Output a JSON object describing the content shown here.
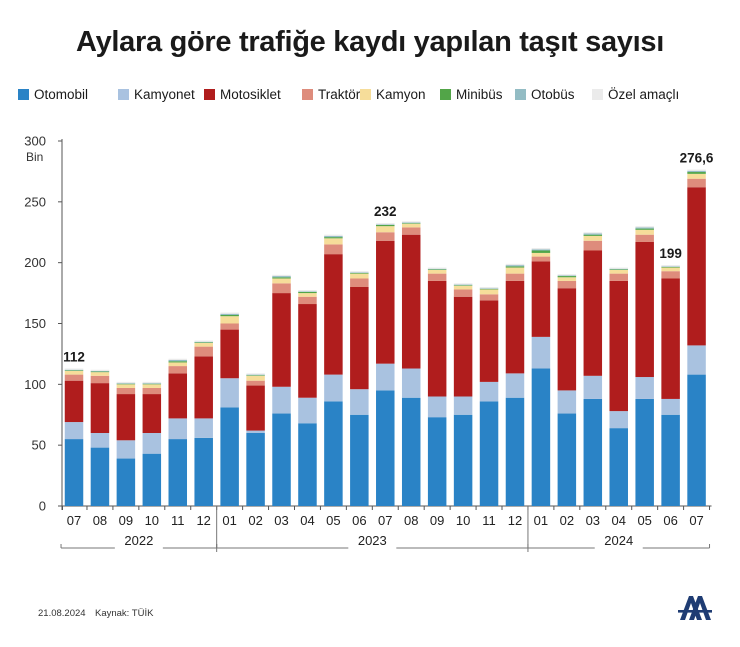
{
  "title": "Aylara göre trafiğe kaydı yapılan taşıt sayısı",
  "footer": {
    "date": "21.08.2024",
    "source": "Kaynak: TÜİK"
  },
  "logo_text": "AA",
  "colors": {
    "Otomobil": "#2a83c6",
    "Kamyonet": "#a9c2e0",
    "Motosiklet": "#b01d1d",
    "Traktör": "#de8c7c",
    "Kamyon": "#f6dd9a",
    "Minibüs": "#52a548",
    "Otobüs": "#93bcc4",
    "Özel amaçlı": "#ebebeb"
  },
  "chart_data": {
    "type": "bar",
    "stacked": true,
    "title": "Aylara göre trafiğe kaydı yapılan taşıt sayısı",
    "ylabel": "Bin",
    "ylim": [
      0,
      300
    ],
    "yticks": [
      0,
      50,
      100,
      150,
      200,
      250,
      300
    ],
    "grid": false,
    "legend_position": "top",
    "categories": [
      "07",
      "08",
      "09",
      "10",
      "11",
      "12",
      "01",
      "02",
      "03",
      "04",
      "05",
      "06",
      "07",
      "08",
      "09",
      "10",
      "11",
      "12",
      "01",
      "02",
      "03",
      "04",
      "05",
      "06",
      "07"
    ],
    "year_groups": [
      {
        "label": "2022",
        "start": 0,
        "end": 5
      },
      {
        "label": "2023",
        "start": 6,
        "end": 17
      },
      {
        "label": "2024",
        "start": 18,
        "end": 24
      }
    ],
    "annotations": [
      {
        "index": 0,
        "text": "112"
      },
      {
        "index": 12,
        "text": "232"
      },
      {
        "index": 23,
        "text": "199"
      },
      {
        "index": 24,
        "text": "276,6"
      }
    ],
    "series": [
      {
        "name": "Otomobil",
        "values": [
          55,
          48,
          39,
          43,
          55,
          56,
          81,
          60,
          76,
          68,
          86,
          75,
          95,
          89,
          73,
          75,
          86,
          89,
          113,
          76,
          88,
          64,
          88,
          75,
          108
        ]
      },
      {
        "name": "Kamyonet",
        "values": [
          14,
          12,
          15,
          17,
          17,
          16,
          24,
          2,
          22,
          21,
          22,
          21,
          22,
          24,
          17,
          15,
          16,
          20,
          26,
          19,
          19,
          14,
          18,
          13,
          24
        ]
      },
      {
        "name": "Motosiklet",
        "values": [
          34,
          41,
          38,
          32,
          37,
          51,
          40,
          37,
          77,
          77,
          99,
          84,
          101,
          110,
          95,
          82,
          67,
          76,
          62,
          84,
          103,
          107,
          111,
          99,
          130
        ]
      },
      {
        "name": "Traktör",
        "values": [
          5,
          6,
          5,
          5,
          6,
          8,
          5,
          4,
          8,
          6,
          8,
          7,
          7,
          6,
          6,
          6,
          5,
          6,
          4,
          6,
          8,
          6,
          6,
          6,
          7
        ]
      },
      {
        "name": "Kamyon",
        "values": [
          3,
          3,
          3,
          3,
          3,
          3,
          6,
          4,
          4,
          3,
          5,
          4,
          5,
          3,
          3,
          3,
          4,
          5,
          3,
          3,
          4,
          3,
          4,
          3,
          4
        ]
      },
      {
        "name": "Minibüs",
        "values": [
          0.5,
          0.5,
          0.5,
          0.5,
          1,
          0.5,
          1,
          0.5,
          1,
          1,
          1,
          0.5,
          1,
          0.5,
          0.5,
          0.5,
          0.5,
          1,
          2,
          1,
          1,
          0.5,
          1,
          0.5,
          1.5
        ]
      },
      {
        "name": "Otobüs",
        "values": [
          0.5,
          0.5,
          0.5,
          0.5,
          1,
          0.5,
          1,
          0.5,
          1,
          0.5,
          1,
          0.5,
          0.5,
          0.5,
          0.5,
          0.5,
          0.5,
          1,
          1,
          0.5,
          1,
          0.5,
          1,
          0.5,
          1
        ]
      },
      {
        "name": "Özel amaçlı",
        "values": [
          1,
          1,
          1,
          1,
          1,
          1,
          1,
          1,
          1,
          1,
          1,
          1,
          1,
          1,
          1,
          1,
          1,
          1,
          1,
          1,
          1,
          1,
          1,
          1,
          1
        ]
      }
    ]
  }
}
